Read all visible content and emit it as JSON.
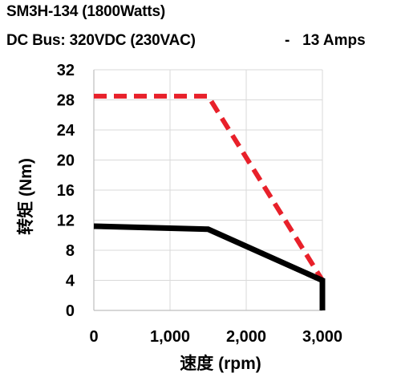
{
  "header": {
    "title": "SM3H-134 (1800Watts)",
    "subtitle_left": "DC Bus: 320VDC (230VAC)",
    "subtitle_right": "-   13 Amps"
  },
  "colors": {
    "peak": "#e8202a",
    "continuous": "#000000",
    "grid": "#d9d9d9"
  },
  "chart_data": {
    "type": "line",
    "xlabel": "速度 (rpm)",
    "ylabel": "转矩 (Nm)",
    "xlim": [
      0,
      3000
    ],
    "ylim": [
      0,
      32
    ],
    "xticks": [
      0,
      1000,
      2000,
      3000
    ],
    "xtick_labels": [
      "0",
      "1,000",
      "2,000",
      "3,000"
    ],
    "yticks": [
      0,
      4,
      8,
      12,
      16,
      20,
      24,
      28,
      32
    ],
    "ytick_labels": [
      "0",
      "4",
      "8",
      "12",
      "16",
      "20",
      "24",
      "28",
      "32"
    ],
    "grid": true,
    "legend": "none",
    "series": [
      {
        "style": "dashed",
        "color": "#e8202a",
        "x": [
          0,
          1500,
          3000,
          3000
        ],
        "y": [
          28.5,
          28.5,
          4,
          0
        ]
      },
      {
        "style": "solid",
        "color": "#000000",
        "x": [
          0,
          1500,
          3000,
          3000
        ],
        "y": [
          11.2,
          10.8,
          4,
          0
        ]
      }
    ]
  }
}
